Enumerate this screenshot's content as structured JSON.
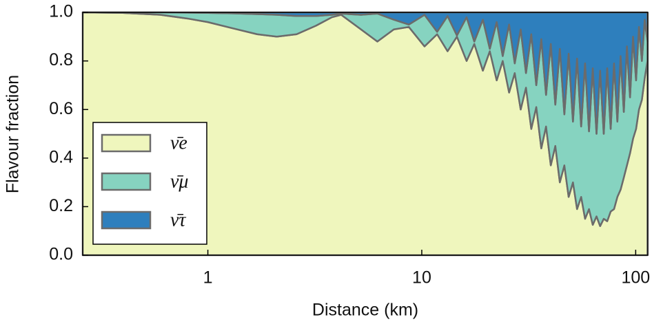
{
  "chart_data": {
    "type": "stacked_area",
    "x_label": "Distance (km)",
    "y_label": "Flavour fraction",
    "log_x": true,
    "legend": "center left",
    "xlim": [
      0.26,
      114
    ],
    "xticks": [
      1,
      10,
      100
    ],
    "ylim": [
      0,
      1
    ],
    "yticks": [
      {
        "value": 0,
        "label": "0.0"
      },
      0.2,
      0.4,
      0.6,
      0.8,
      {
        "value": 1,
        "label": "1.0"
      }
    ],
    "x": [
      0.26,
      0.4,
      0.6,
      0.8,
      1.0,
      1.3,
      1.7,
      2.1,
      2.6,
      3.2,
      3.8,
      4.2,
      5.2,
      6.2,
      7.4,
      8.7,
      10.3,
      11.8,
      13.2,
      14.6,
      16.2,
      17.6,
      19.3,
      20.8,
      22.4,
      23.9,
      25.6,
      27.2,
      29.0,
      30.7,
      32.5,
      34.3,
      36.2,
      38.1,
      40.1,
      42.1,
      44.2,
      46.4,
      48.6,
      50.9,
      53.2,
      55.6,
      58.0,
      60.5,
      63.0,
      65.6,
      68.2,
      70.9,
      73.6,
      76.4,
      79.2,
      82.1,
      85.0,
      88.0,
      91.0,
      94.1,
      97.2,
      100.4,
      103.6,
      106.9,
      110.2,
      113.5
    ],
    "series": [
      {
        "name": "ν̄e",
        "color": "#eff6bd",
        "values": [
          1,
          0.998,
          0.99,
          0.975,
          0.96,
          0.935,
          0.91,
          0.9,
          0.91,
          0.945,
          0.98,
          0.99,
          0.93,
          0.88,
          0.93,
          0.94,
          0.86,
          0.91,
          0.84,
          0.9,
          0.8,
          0.87,
          0.76,
          0.84,
          0.72,
          0.8,
          0.67,
          0.75,
          0.6,
          0.69,
          0.52,
          0.61,
          0.44,
          0.53,
          0.37,
          0.45,
          0.3,
          0.37,
          0.24,
          0.3,
          0.19,
          0.24,
          0.15,
          0.19,
          0.125,
          0.16,
          0.12,
          0.15,
          0.14,
          0.18,
          0.19,
          0.24,
          0.27,
          0.32,
          0.37,
          0.42,
          0.48,
          0.52,
          0.6,
          0.64,
          0.73,
          0.8
        ]
      },
      {
        "name": "ν̄μ",
        "color": "#86d3c0",
        "values": [
          0,
          0.002,
          0.01,
          0.024,
          0.038,
          0.061,
          0.083,
          0.09,
          0.075,
          0.04,
          0.01,
          0.005,
          0.06,
          0.115,
          0.04,
          0.01,
          0.13,
          0.01,
          0.145,
          0.005,
          0.18,
          0.01,
          0.21,
          0.01,
          0.24,
          0.02,
          0.28,
          0.04,
          0.33,
          0.06,
          0.39,
          0.09,
          0.45,
          0.13,
          0.5,
          0.17,
          0.55,
          0.21,
          0.59,
          0.25,
          0.62,
          0.29,
          0.64,
          0.32,
          0.645,
          0.34,
          0.64,
          0.35,
          0.63,
          0.34,
          0.6,
          0.31,
          0.55,
          0.27,
          0.49,
          0.23,
          0.42,
          0.2,
          0.34,
          0.16,
          0.24,
          0.08
        ]
      },
      {
        "name": "ν̄τ",
        "color": "#2e7fbd",
        "values": [
          0,
          0,
          0,
          0.001,
          0.002,
          0.004,
          0.007,
          0.01,
          0.015,
          0.015,
          0.01,
          0.005,
          0.01,
          0.005,
          0.03,
          0.05,
          0.01,
          0.08,
          0.015,
          0.095,
          0.02,
          0.12,
          0.03,
          0.15,
          0.04,
          0.18,
          0.05,
          0.21,
          0.07,
          0.25,
          0.09,
          0.3,
          0.11,
          0.34,
          0.13,
          0.38,
          0.15,
          0.42,
          0.17,
          0.45,
          0.19,
          0.47,
          0.21,
          0.49,
          0.23,
          0.5,
          0.24,
          0.5,
          0.23,
          0.48,
          0.21,
          0.45,
          0.18,
          0.41,
          0.14,
          0.35,
          0.1,
          0.28,
          0.06,
          0.2,
          0.03,
          0.12
        ]
      }
    ]
  }
}
